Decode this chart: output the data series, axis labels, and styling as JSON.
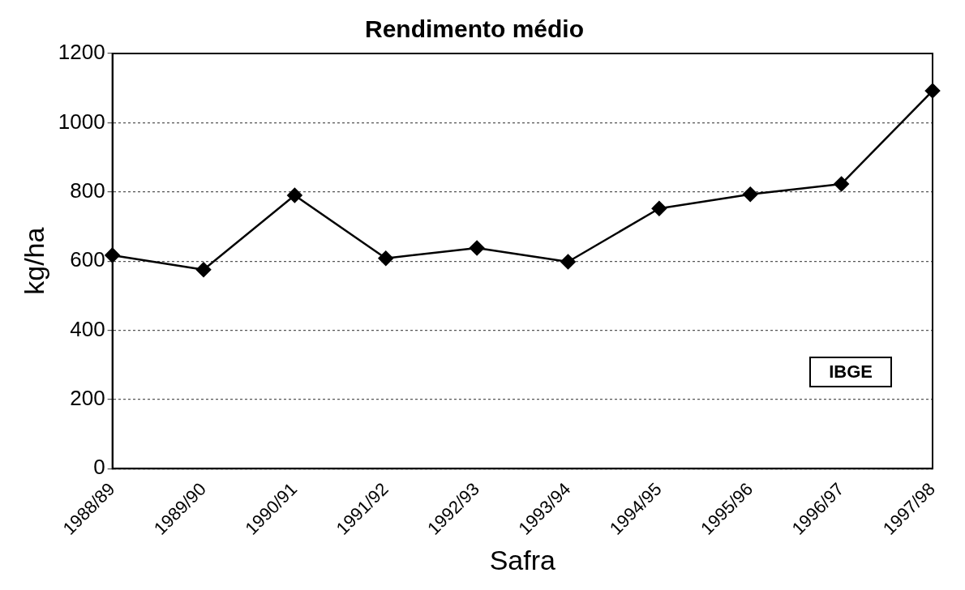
{
  "chart_data": {
    "type": "line",
    "title": "Rendimento médio",
    "xlabel": "Safra",
    "ylabel": "kg/ha",
    "categories": [
      "1988/89",
      "1989/90",
      "1990/91",
      "1991/92",
      "1992/93",
      "1993/94",
      "1994/95",
      "1995/96",
      "1996/97",
      "1997/98"
    ],
    "series": [
      {
        "color": "#000000",
        "values": [
          617,
          575,
          790,
          608,
          638,
          598,
          752,
          793,
          823,
          1092
        ]
      }
    ],
    "ylim": [
      0,
      1200
    ],
    "yticks": [
      0,
      200,
      400,
      600,
      800,
      1000,
      1200
    ],
    "grid": "y",
    "legend": false,
    "marker": "diamond",
    "line_style": "solid",
    "annotations": [
      "IBGE"
    ]
  }
}
